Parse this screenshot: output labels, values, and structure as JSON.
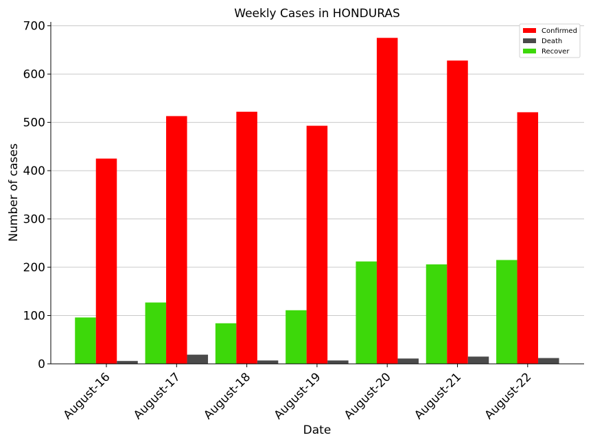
{
  "chart_data": {
    "type": "bar",
    "title": "Weekly Cases in HONDURAS",
    "xlabel": "Date",
    "ylabel": "Number of cases",
    "categories": [
      "August-16",
      "August-17",
      "August-18",
      "August-19",
      "August-20",
      "August-21",
      "August-22"
    ],
    "ylim": [
      0,
      708
    ],
    "yticks": [
      0,
      100,
      200,
      300,
      400,
      500,
      600,
      700
    ],
    "grid": "horizontal",
    "legend_position": "top-right",
    "series": [
      {
        "name": "Recover",
        "color": "#3dd80a",
        "values": [
          96,
          127,
          84,
          111,
          212,
          206,
          215
        ]
      },
      {
        "name": "Confirmed",
        "color": "#ff0000",
        "values": [
          425,
          513,
          522,
          493,
          675,
          628,
          521
        ]
      },
      {
        "name": "Death",
        "color": "#4a4a4a",
        "values": [
          6,
          19,
          7,
          7,
          11,
          15,
          12
        ]
      }
    ],
    "legend_order": [
      "Confirmed",
      "Death",
      "Recover"
    ]
  }
}
